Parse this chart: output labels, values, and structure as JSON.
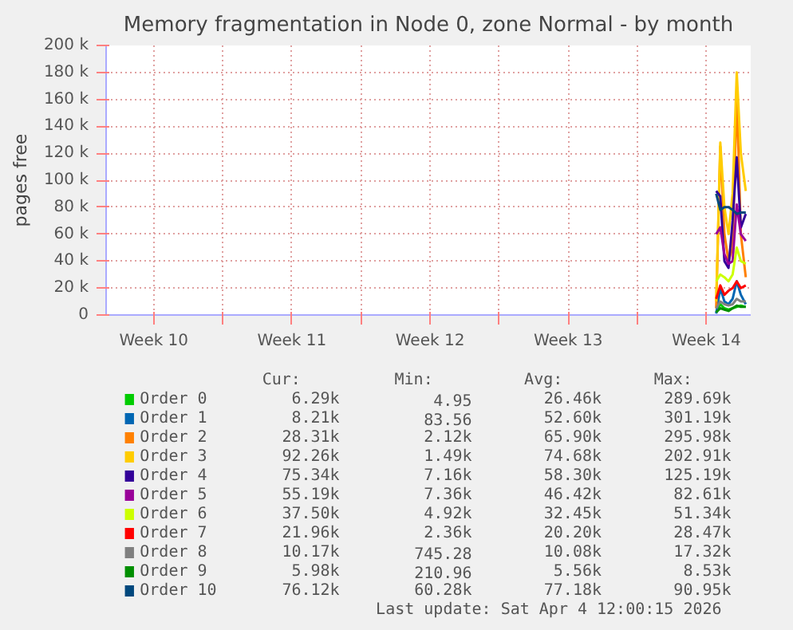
{
  "chart_data": {
    "type": "line",
    "title": "Memory fragmentation in Node 0, zone Normal - by month",
    "ylabel": "pages free",
    "x": [
      "2026-04-03T00:00",
      "2026-04-03T05:00",
      "2026-04-03T10:00",
      "2026-04-03T15:00",
      "2026-04-03T20:00",
      "2026-04-04T01:00",
      "2026-04-04T06:00",
      "2026-04-04T12:00"
    ],
    "xlim": [
      "2026-03-03T02:00",
      "2026-04-04T18:00"
    ],
    "xticks": [
      {
        "value": "2026-03-05T12:00",
        "label": "Week 10"
      },
      {
        "value": "2026-03-09",
        "label": null
      },
      {
        "value": "2026-03-12T12:00",
        "label": "Week 11"
      },
      {
        "value": "2026-03-16",
        "label": null
      },
      {
        "value": "2026-03-19T12:00",
        "label": "Week 12"
      },
      {
        "value": "2026-03-23",
        "label": null
      },
      {
        "value": "2026-03-26T12:00",
        "label": "Week 13"
      },
      {
        "value": "2026-03-30",
        "label": null
      },
      {
        "value": "2026-04-02T12:00",
        "label": "Week 14"
      }
    ],
    "ylim": [
      0,
      200000
    ],
    "yticks": [
      {
        "value": 0,
        "label": "0"
      },
      {
        "value": 20000,
        "label": "20 k"
      },
      {
        "value": 40000,
        "label": "40 k"
      },
      {
        "value": 60000,
        "label": "60 k"
      },
      {
        "value": 80000,
        "label": "80 k"
      },
      {
        "value": 100000,
        "label": "100 k"
      },
      {
        "value": 120000,
        "label": "120 k"
      },
      {
        "value": 140000,
        "label": "140 k"
      },
      {
        "value": 160000,
        "label": "160 k"
      },
      {
        "value": 180000,
        "label": "180 k"
      },
      {
        "value": 200000,
        "label": "200 k"
      }
    ],
    "grid": true,
    "legend": "bottom",
    "series": [
      {
        "name": "Order 0",
        "color": "#00cc00",
        "values": [
          2000,
          8000,
          5000,
          4000,
          5000,
          6000,
          7000,
          6000
        ]
      },
      {
        "name": "Order 1",
        "color": "#0066b3",
        "values": [
          1000,
          20000,
          10000,
          8000,
          12000,
          25000,
          15000,
          8000
        ]
      },
      {
        "name": "Order 2",
        "color": "#ff8000",
        "values": [
          5000,
          125000,
          60000,
          40000,
          50000,
          165000,
          60000,
          28000
        ]
      },
      {
        "name": "Order 3",
        "color": "#ffcc00",
        "values": [
          10000,
          128000,
          80000,
          60000,
          90000,
          180000,
          120000,
          92000
        ]
      },
      {
        "name": "Order 4",
        "color": "#330099",
        "values": [
          92000,
          88000,
          40000,
          35000,
          70000,
          117000,
          65000,
          75000
        ]
      },
      {
        "name": "Order 5",
        "color": "#990099",
        "values": [
          60000,
          65000,
          45000,
          38000,
          40000,
          82000,
          60000,
          55000
        ]
      },
      {
        "name": "Order 6",
        "color": "#ccff00",
        "values": [
          25000,
          30000,
          28000,
          25000,
          30000,
          50000,
          40000,
          38000
        ]
      },
      {
        "name": "Order 7",
        "color": "#ff0000",
        "values": [
          12000,
          22000,
          15000,
          18000,
          20000,
          25000,
          20000,
          22000
        ]
      },
      {
        "name": "Order 8",
        "color": "#808080",
        "values": [
          5000,
          10000,
          8000,
          7000,
          8000,
          12000,
          10000,
          10000
        ]
      },
      {
        "name": "Order 9",
        "color": "#008f00",
        "values": [
          2000,
          5000,
          4000,
          3000,
          5000,
          7000,
          6000,
          6000
        ]
      },
      {
        "name": "Order 10",
        "color": "#00487d",
        "values": [
          90000,
          78000,
          80000,
          80000,
          78000,
          75000,
          76000,
          76000
        ]
      }
    ],
    "annotations": [
      "Cur:",
      "Min:",
      "Avg:",
      "Max:",
      "6.29k",
      "4.95",
      "26.46k",
      "289.69k",
      "8.21k",
      "83.56",
      "52.60k",
      "301.19k",
      "28.31k",
      "2.12k",
      "65.90k",
      "295.98k",
      "92.26k",
      "1.49k",
      "74.68k",
      "202.91k",
      "75.34k",
      "7.16k",
      "58.30k",
      "125.19k",
      "55.19k",
      "7.36k",
      "46.42k",
      "82.61k",
      "37.50k",
      "4.92k",
      "32.45k",
      "51.34k",
      "21.96k",
      "2.36k",
      "20.20k",
      "28.47k",
      "10.17k",
      "745.28",
      "10.08k",
      "17.32k",
      "5.98k",
      "210.96",
      "5.56k",
      "8.53k",
      "76.12k",
      "60.28k",
      "77.18k",
      "90.95k",
      "Last update: Sat Apr  4 12:00:15 2026"
    ]
  }
}
